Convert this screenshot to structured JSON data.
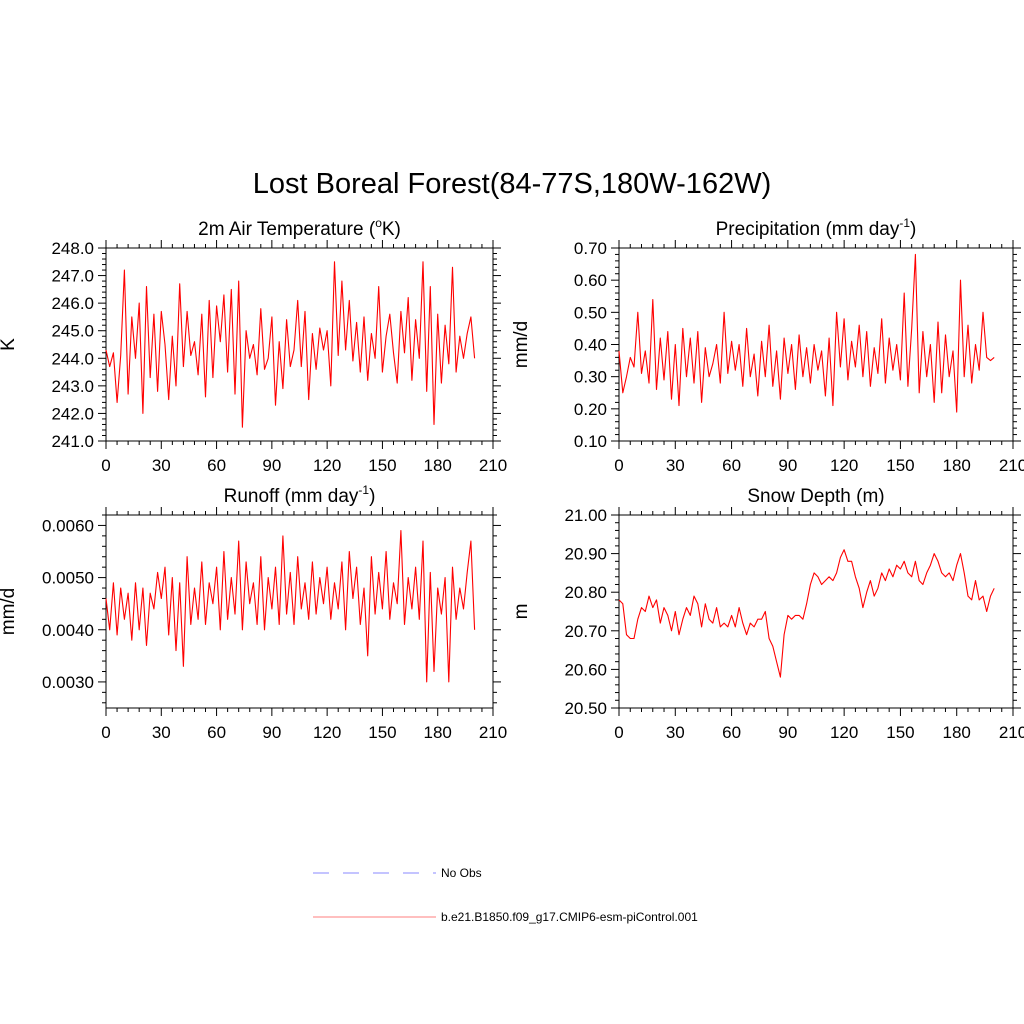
{
  "figure": {
    "title": "Lost Boreal Forest(84-77S,180W-162W)"
  },
  "chart_data": [
    {
      "type": "line",
      "title": "2m Air Temperature (°K)",
      "title_parts": [
        "2m Air Temperature (",
        "o",
        "K)"
      ],
      "ylabel": "K",
      "xlim": [
        0,
        210
      ],
      "ylim": [
        241.0,
        248.0
      ],
      "xticks": [
        "0",
        "30",
        "60",
        "90",
        "120",
        "150",
        "180",
        "210"
      ],
      "yticks": [
        "241.0",
        "242.0",
        "243.0",
        "244.0",
        "245.0",
        "246.0",
        "247.0",
        "248.0"
      ],
      "series": [
        {
          "name": "b.e21.B1850.f09_g17.CMIP6-esm-piControl.001",
          "color": "#ff0000",
          "x": [
            0,
            2,
            4,
            6,
            8,
            10,
            12,
            14,
            16,
            18,
            20,
            22,
            24,
            26,
            28,
            30,
            32,
            34,
            36,
            38,
            40,
            42,
            44,
            46,
            48,
            50,
            52,
            54,
            56,
            58,
            60,
            62,
            64,
            66,
            68,
            70,
            72,
            74,
            76,
            78,
            80,
            82,
            84,
            86,
            88,
            90,
            92,
            94,
            96,
            98,
            100,
            102,
            104,
            106,
            108,
            110,
            112,
            114,
            116,
            118,
            120,
            122,
            124,
            126,
            128,
            130,
            132,
            134,
            136,
            138,
            140,
            142,
            144,
            146,
            148,
            150,
            152,
            154,
            156,
            158,
            160,
            162,
            164,
            166,
            168,
            170,
            172,
            174,
            176,
            178,
            180,
            182,
            184,
            186,
            188,
            190,
            192,
            194,
            196,
            198,
            200
          ],
          "y": [
            244.3,
            243.7,
            244.2,
            242.4,
            244.1,
            247.2,
            242.7,
            245.5,
            244.0,
            246.0,
            242.0,
            246.6,
            243.3,
            245.6,
            242.8,
            245.7,
            244.5,
            242.5,
            244.8,
            243.0,
            246.7,
            243.7,
            245.7,
            244.1,
            244.6,
            243.4,
            245.6,
            242.6,
            246.1,
            243.3,
            245.9,
            244.6,
            246.3,
            243.5,
            246.5,
            242.7,
            246.8,
            241.5,
            245.0,
            244.0,
            244.5,
            243.4,
            245.8,
            243.6,
            244.0,
            245.5,
            242.3,
            244.6,
            242.9,
            245.4,
            243.7,
            244.3,
            246.1,
            243.7,
            245.7,
            242.5,
            244.9,
            243.6,
            245.1,
            244.3,
            245.0,
            243.0,
            247.5,
            244.1,
            246.8,
            244.3,
            246.1,
            243.9,
            245.3,
            243.5,
            245.5,
            243.2,
            244.9,
            244.0,
            246.6,
            243.5,
            244.8,
            245.6,
            244.2,
            243.1,
            245.7,
            244.2,
            246.2,
            243.2,
            245.4,
            244.0,
            247.5,
            242.8,
            246.6,
            241.6,
            245.6,
            243.1,
            245.2,
            243.8,
            247.3,
            243.5,
            244.8,
            244.0,
            244.9,
            245.5,
            244.0
          ]
        }
      ]
    },
    {
      "type": "line",
      "title": "Precipitation (mm day-1)",
      "title_parts": [
        "Precipitation (mm day",
        "-1",
        ")"
      ],
      "ylabel": "mm/d",
      "xlim": [
        0,
        210
      ],
      "ylim": [
        0.1,
        0.7
      ],
      "xticks": [
        "0",
        "30",
        "60",
        "90",
        "120",
        "150",
        "180",
        "210"
      ],
      "yticks": [
        "0.10",
        "0.20",
        "0.30",
        "0.40",
        "0.50",
        "0.60",
        "0.70"
      ],
      "series": [
        {
          "name": "b.e21.B1850.f09_g17.CMIP6-esm-piControl.001",
          "color": "#ff0000",
          "x": [
            0,
            2,
            4,
            6,
            8,
            10,
            12,
            14,
            16,
            18,
            20,
            22,
            24,
            26,
            28,
            30,
            32,
            34,
            36,
            38,
            40,
            42,
            44,
            46,
            48,
            50,
            52,
            54,
            56,
            58,
            60,
            62,
            64,
            66,
            68,
            70,
            72,
            74,
            76,
            78,
            80,
            82,
            84,
            86,
            88,
            90,
            92,
            94,
            96,
            98,
            100,
            102,
            104,
            106,
            108,
            110,
            112,
            114,
            116,
            118,
            120,
            122,
            124,
            126,
            128,
            130,
            132,
            134,
            136,
            138,
            140,
            142,
            144,
            146,
            148,
            150,
            152,
            154,
            156,
            158,
            160,
            162,
            164,
            166,
            168,
            170,
            172,
            174,
            176,
            178,
            180,
            182,
            184,
            186,
            188,
            190,
            192,
            194,
            196,
            198,
            200
          ],
          "y": [
            0.38,
            0.25,
            0.3,
            0.36,
            0.33,
            0.5,
            0.31,
            0.38,
            0.28,
            0.54,
            0.26,
            0.42,
            0.29,
            0.44,
            0.23,
            0.4,
            0.21,
            0.45,
            0.3,
            0.42,
            0.28,
            0.44,
            0.22,
            0.39,
            0.3,
            0.34,
            0.4,
            0.28,
            0.5,
            0.31,
            0.41,
            0.32,
            0.4,
            0.27,
            0.45,
            0.3,
            0.37,
            0.24,
            0.41,
            0.3,
            0.46,
            0.27,
            0.38,
            0.23,
            0.42,
            0.31,
            0.4,
            0.26,
            0.43,
            0.3,
            0.39,
            0.28,
            0.4,
            0.32,
            0.38,
            0.24,
            0.42,
            0.21,
            0.5,
            0.33,
            0.48,
            0.29,
            0.41,
            0.33,
            0.46,
            0.3,
            0.44,
            0.27,
            0.39,
            0.31,
            0.48,
            0.28,
            0.42,
            0.32,
            0.4,
            0.29,
            0.56,
            0.27,
            0.45,
            0.68,
            0.25,
            0.44,
            0.3,
            0.4,
            0.22,
            0.47,
            0.25,
            0.43,
            0.3,
            0.38,
            0.19,
            0.6,
            0.3,
            0.46,
            0.28,
            0.4,
            0.32,
            0.5,
            0.36,
            0.35,
            0.36
          ]
        }
      ]
    },
    {
      "type": "line",
      "title": "Runoff (mm day-1)",
      "title_parts": [
        "Runoff (mm day",
        "-1",
        ")"
      ],
      "ylabel": "mm/d",
      "xlim": [
        0,
        210
      ],
      "ylim": [
        0.0025,
        0.0062
      ],
      "xticks": [
        "0",
        "30",
        "60",
        "90",
        "120",
        "150",
        "180",
        "210"
      ],
      "yticks": [
        "0.0030",
        "0.0040",
        "0.0050",
        "0.0060"
      ],
      "series": [
        {
          "name": "b.e21.B1850.f09_g17.CMIP6-esm-piControl.001",
          "color": "#ff0000",
          "x": [
            0,
            2,
            4,
            6,
            8,
            10,
            12,
            14,
            16,
            18,
            20,
            22,
            24,
            26,
            28,
            30,
            32,
            34,
            36,
            38,
            40,
            42,
            44,
            46,
            48,
            50,
            52,
            54,
            56,
            58,
            60,
            62,
            64,
            66,
            68,
            70,
            72,
            74,
            76,
            78,
            80,
            82,
            84,
            86,
            88,
            90,
            92,
            94,
            96,
            98,
            100,
            102,
            104,
            106,
            108,
            110,
            112,
            114,
            116,
            118,
            120,
            122,
            124,
            126,
            128,
            130,
            132,
            134,
            136,
            138,
            140,
            142,
            144,
            146,
            148,
            150,
            152,
            154,
            156,
            158,
            160,
            162,
            164,
            166,
            168,
            170,
            172,
            174,
            176,
            178,
            180,
            182,
            184,
            186,
            188,
            190,
            192,
            194,
            196,
            198,
            200
          ],
          "y": [
            0.0046,
            0.004,
            0.0049,
            0.0039,
            0.0048,
            0.0042,
            0.0047,
            0.0038,
            0.0049,
            0.004,
            0.0048,
            0.0037,
            0.0047,
            0.0044,
            0.0051,
            0.0046,
            0.0052,
            0.0039,
            0.005,
            0.0036,
            0.0049,
            0.0033,
            0.0054,
            0.0041,
            0.0048,
            0.0042,
            0.0053,
            0.0041,
            0.0049,
            0.0045,
            0.0052,
            0.004,
            0.0055,
            0.0042,
            0.005,
            0.0043,
            0.0057,
            0.004,
            0.0053,
            0.0045,
            0.0049,
            0.0041,
            0.0054,
            0.004,
            0.005,
            0.0044,
            0.0052,
            0.0041,
            0.0058,
            0.0043,
            0.0051,
            0.0041,
            0.0054,
            0.0044,
            0.0049,
            0.0042,
            0.0053,
            0.0043,
            0.005,
            0.0045,
            0.0052,
            0.0042,
            0.0049,
            0.0044,
            0.0053,
            0.004,
            0.0055,
            0.0046,
            0.0052,
            0.0041,
            0.0048,
            0.0035,
            0.0054,
            0.0043,
            0.0051,
            0.0044,
            0.0055,
            0.0042,
            0.0049,
            0.0045,
            0.0059,
            0.0041,
            0.005,
            0.0044,
            0.0052,
            0.0042,
            0.0057,
            0.003,
            0.0051,
            0.0032,
            0.0048,
            0.0043,
            0.005,
            0.003,
            0.0052,
            0.0042,
            0.0048,
            0.0044,
            0.0051,
            0.0057,
            0.004
          ]
        }
      ]
    },
    {
      "type": "line",
      "title": "Snow Depth (m)",
      "title_parts": [
        "Snow Depth (m)"
      ],
      "ylabel": "m",
      "xlim": [
        0,
        210
      ],
      "ylim": [
        20.5,
        21.0
      ],
      "xticks": [
        "0",
        "30",
        "60",
        "90",
        "120",
        "150",
        "180",
        "210"
      ],
      "yticks": [
        "20.50",
        "20.60",
        "20.70",
        "20.80",
        "20.90",
        "21.00"
      ],
      "series": [
        {
          "name": "b.e21.B1850.f09_g17.CMIP6-esm-piControl.001",
          "color": "#ff0000",
          "x": [
            0,
            2,
            4,
            6,
            8,
            10,
            12,
            14,
            16,
            18,
            20,
            22,
            24,
            26,
            28,
            30,
            32,
            34,
            36,
            38,
            40,
            42,
            44,
            46,
            48,
            50,
            52,
            54,
            56,
            58,
            60,
            62,
            64,
            66,
            68,
            70,
            72,
            74,
            76,
            78,
            80,
            82,
            84,
            86,
            88,
            90,
            92,
            94,
            96,
            98,
            100,
            102,
            104,
            106,
            108,
            110,
            112,
            114,
            116,
            118,
            120,
            122,
            124,
            126,
            128,
            130,
            132,
            134,
            136,
            138,
            140,
            142,
            144,
            146,
            148,
            150,
            152,
            154,
            156,
            158,
            160,
            162,
            164,
            166,
            168,
            170,
            172,
            174,
            176,
            178,
            180,
            182,
            184,
            186,
            188,
            190,
            192,
            194,
            196,
            198,
            200
          ],
          "y": [
            20.78,
            20.77,
            20.69,
            20.68,
            20.68,
            20.73,
            20.76,
            20.75,
            20.79,
            20.76,
            20.78,
            20.72,
            20.76,
            20.74,
            20.7,
            20.75,
            20.69,
            20.73,
            20.76,
            20.74,
            20.79,
            20.77,
            20.71,
            20.77,
            20.73,
            20.72,
            20.76,
            20.71,
            20.72,
            20.71,
            20.74,
            20.71,
            20.76,
            20.72,
            20.69,
            20.72,
            20.71,
            20.73,
            20.73,
            20.75,
            20.68,
            20.66,
            20.62,
            20.58,
            20.69,
            20.74,
            20.73,
            20.74,
            20.74,
            20.73,
            20.77,
            20.82,
            20.85,
            20.84,
            20.82,
            20.83,
            20.84,
            20.83,
            20.85,
            20.89,
            20.91,
            20.88,
            20.88,
            20.84,
            20.81,
            20.76,
            20.8,
            20.83,
            20.79,
            20.81,
            20.85,
            20.83,
            20.86,
            20.84,
            20.87,
            20.86,
            20.88,
            20.85,
            20.84,
            20.88,
            20.83,
            20.82,
            20.85,
            20.87,
            20.9,
            20.88,
            20.85,
            20.84,
            20.85,
            20.83,
            20.87,
            20.9,
            20.85,
            20.79,
            20.78,
            20.83,
            20.78,
            20.79,
            20.75,
            20.79,
            20.81
          ]
        }
      ]
    }
  ],
  "legend": {
    "items": [
      {
        "label": "No Obs",
        "color": "#a0a0ff",
        "style": "dashed"
      },
      {
        "label": "b.e21.B1850.f09_g17.CMIP6-esm-piControl.001",
        "color": "#ff9999",
        "style": "solid"
      }
    ]
  }
}
